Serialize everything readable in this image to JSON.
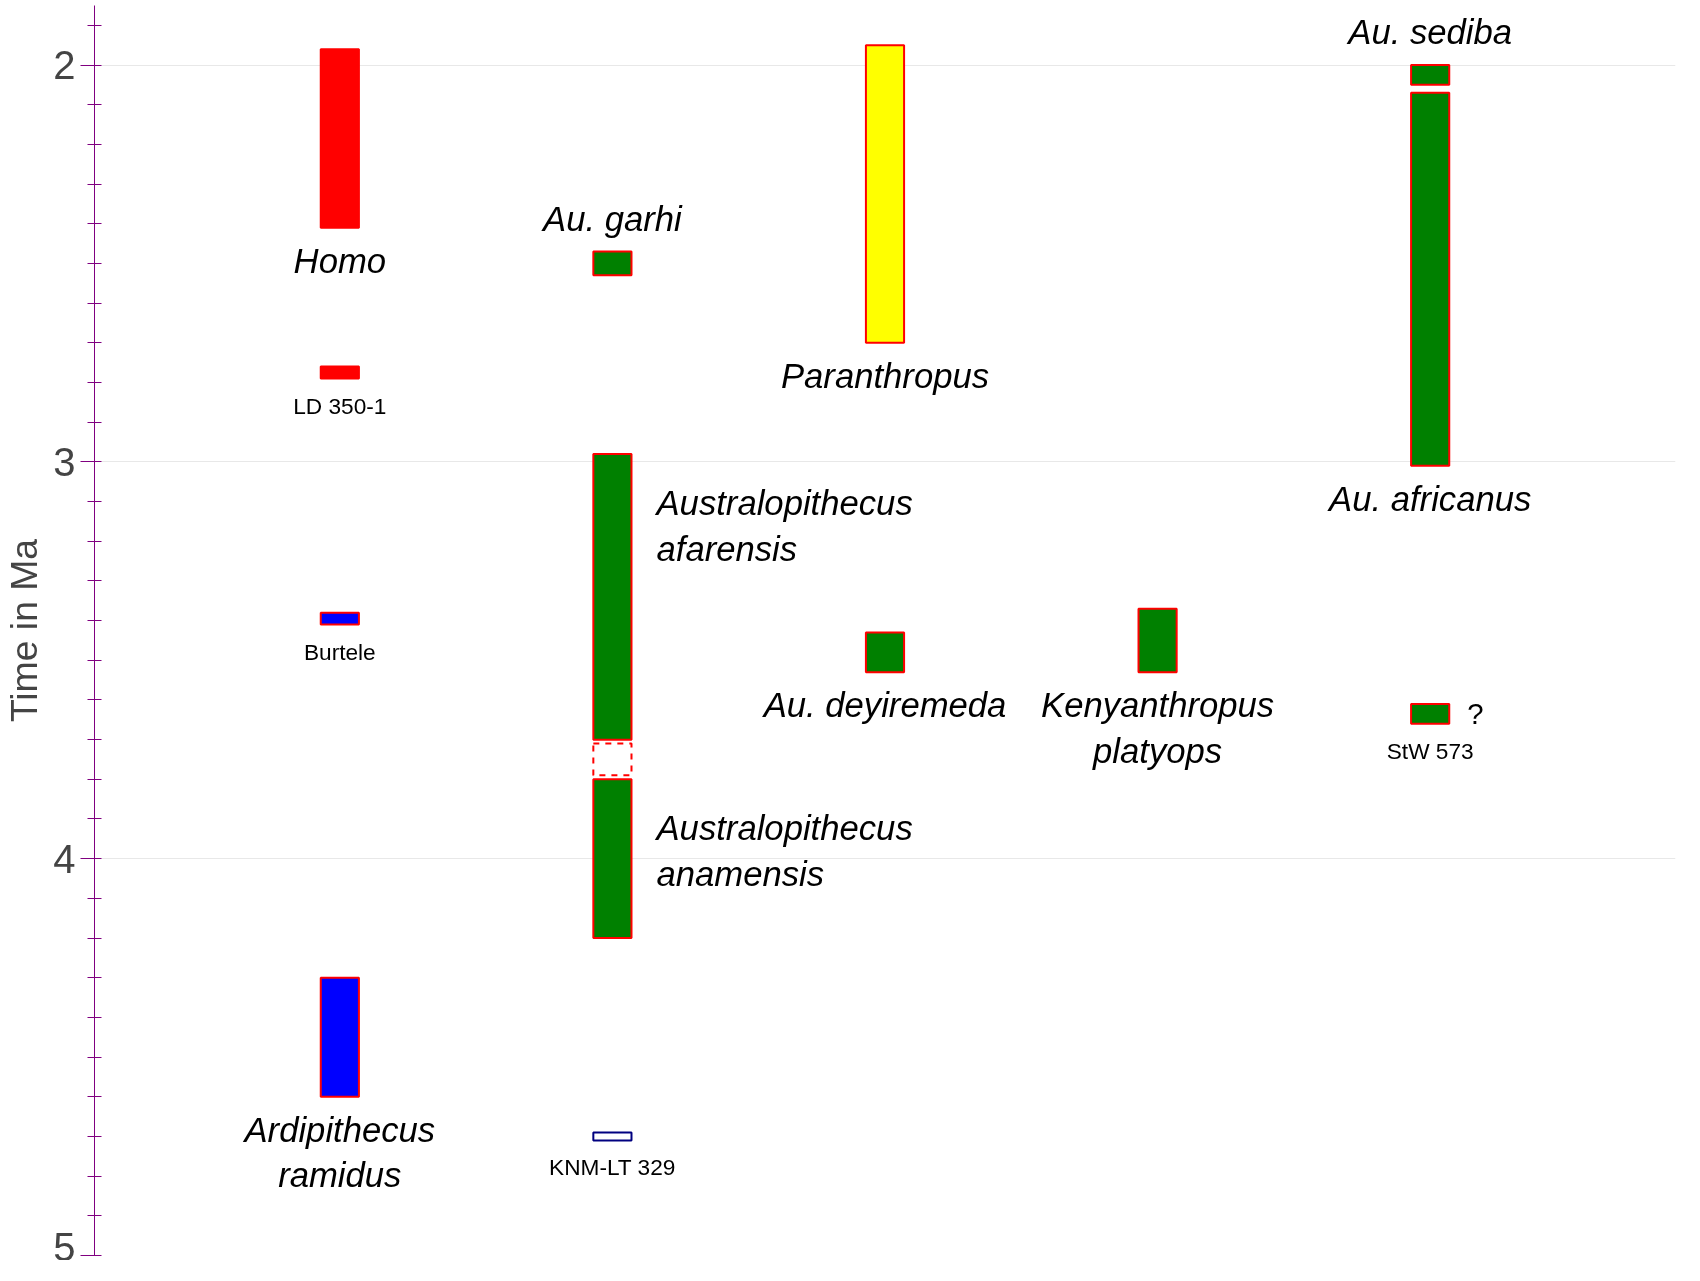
{
  "chart_data": {
    "type": "bar",
    "ylabel": "Time in Ma",
    "categories": [
      null,
      null,
      null,
      null,
      null
    ],
    "ylim": [
      5,
      1.85
    ],
    "yticks": [
      2,
      3,
      4,
      5
    ],
    "grid": "y",
    "series": [
      {
        "name": "Homo",
        "color": "#ff0000",
        "values": [
          0.45,
          null,
          null,
          null,
          null
        ],
        "base": [
          1.96,
          null,
          null,
          null,
          null
        ]
      },
      {
        "name": "LD 350-1",
        "color": "#ff0000",
        "values": [
          0.03,
          null,
          null,
          null,
          null
        ],
        "base": [
          2.76,
          null,
          null,
          null,
          null
        ]
      },
      {
        "name": "Burtele",
        "color": "#0000ff",
        "values": [
          0.03,
          null,
          null,
          null,
          null
        ],
        "base": [
          3.38,
          null,
          null,
          null,
          null
        ]
      },
      {
        "name": "Ardipithecus\nramidus",
        "color": "#0000ff",
        "values": [
          0.3,
          null,
          null,
          null,
          null
        ],
        "base": [
          4.3,
          null,
          null,
          null,
          null
        ]
      },
      {
        "name": "Au. garhi",
        "color": "#008000",
        "values": [
          null,
          0.06,
          null,
          null,
          null
        ],
        "base": [
          null,
          2.47,
          null,
          null,
          null
        ]
      },
      {
        "name": "Australopithecus\nafarensis",
        "color": "#008000",
        "values": [
          null,
          0.72,
          null,
          null,
          null
        ],
        "base": [
          null,
          2.98,
          null,
          null,
          null
        ]
      },
      {
        "color": "#ffffff",
        "line_style": "dashed",
        "values": [
          null,
          0.08,
          null,
          null,
          null
        ],
        "base": [
          null,
          3.71,
          null,
          null,
          null
        ]
      },
      {
        "name": "Australopithecus\nanamensis",
        "color": "#008000",
        "values": [
          null,
          0.4,
          null,
          null,
          null
        ],
        "base": [
          null,
          3.8,
          null,
          null,
          null
        ]
      },
      {
        "name": "KNM-LT 329",
        "color": "#ffffff",
        "values": [
          null,
          0.02,
          null,
          null,
          null
        ],
        "base": [
          null,
          4.69,
          null,
          null,
          null
        ]
      },
      {
        "name": "Paranthropus",
        "color": "#ffff00",
        "values": [
          null,
          null,
          0.75,
          null,
          null
        ],
        "base": [
          null,
          null,
          1.95,
          null,
          null
        ]
      },
      {
        "name": "Au. deyiremeda",
        "color": "#008000",
        "values": [
          null,
          null,
          0.1,
          null,
          null
        ],
        "base": [
          null,
          null,
          3.43,
          null,
          null
        ]
      },
      {
        "name": "Kenyanthropus\nplatyops",
        "color": "#008000",
        "values": [
          null,
          null,
          null,
          0.16,
          null
        ],
        "base": [
          null,
          null,
          null,
          3.37,
          null
        ]
      },
      {
        "name": "Au. sediba",
        "color": "#008000",
        "values": [
          null,
          null,
          null,
          null,
          0.05
        ],
        "base": [
          null,
          null,
          null,
          null,
          2.0
        ]
      },
      {
        "name": "Au. africanus",
        "color": "#008000",
        "values": [
          null,
          null,
          null,
          null,
          0.94
        ],
        "base": [
          null,
          null,
          null,
          null,
          2.07
        ]
      },
      {
        "name": "StW 573",
        "color": "#008000",
        "values": [
          null,
          null,
          null,
          null,
          0.05
        ],
        "base": [
          null,
          null,
          null,
          null,
          3.61
        ]
      }
    ],
    "annotations": [
      "?"
    ]
  }
}
